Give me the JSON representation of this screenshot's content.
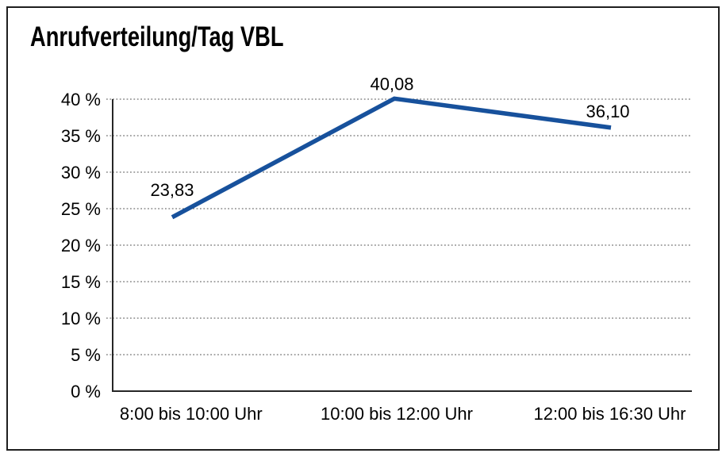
{
  "window": {
    "background": "#ffffff",
    "frame_border_color": "#1f1f1f"
  },
  "chart_data": {
    "type": "line",
    "title": "Anrufverteilung/Tag VBL",
    "categories": [
      "8:00 bis 10:00 Uhr",
      "10:00 bis 12:00 Uhr",
      "12:00 bis 16:30 Uhr"
    ],
    "series": [
      {
        "name": "Anrufverteilung/Tag VBL",
        "values": [
          23.83,
          40.08,
          36.1
        ],
        "point_labels": [
          "23,83",
          "40,08",
          "36,10"
        ],
        "color": "#17519c"
      }
    ],
    "xlabel": "",
    "ylabel": "",
    "ylim": [
      0,
      40
    ],
    "ytick_step": 5,
    "ytick_values": [
      0,
      5,
      10,
      15,
      20,
      25,
      30,
      35,
      40
    ],
    "ytick_labels": [
      "0 %",
      "5 %",
      "10 %",
      "15 %",
      "20 %",
      "25 %",
      "30 %",
      "35 %",
      "40 %"
    ],
    "grid": "horizontal-dotted",
    "legend_position": "none"
  },
  "colors": {
    "line": "#17519c",
    "gridline": "#707070",
    "axis": "#262626",
    "text": "#000000"
  }
}
